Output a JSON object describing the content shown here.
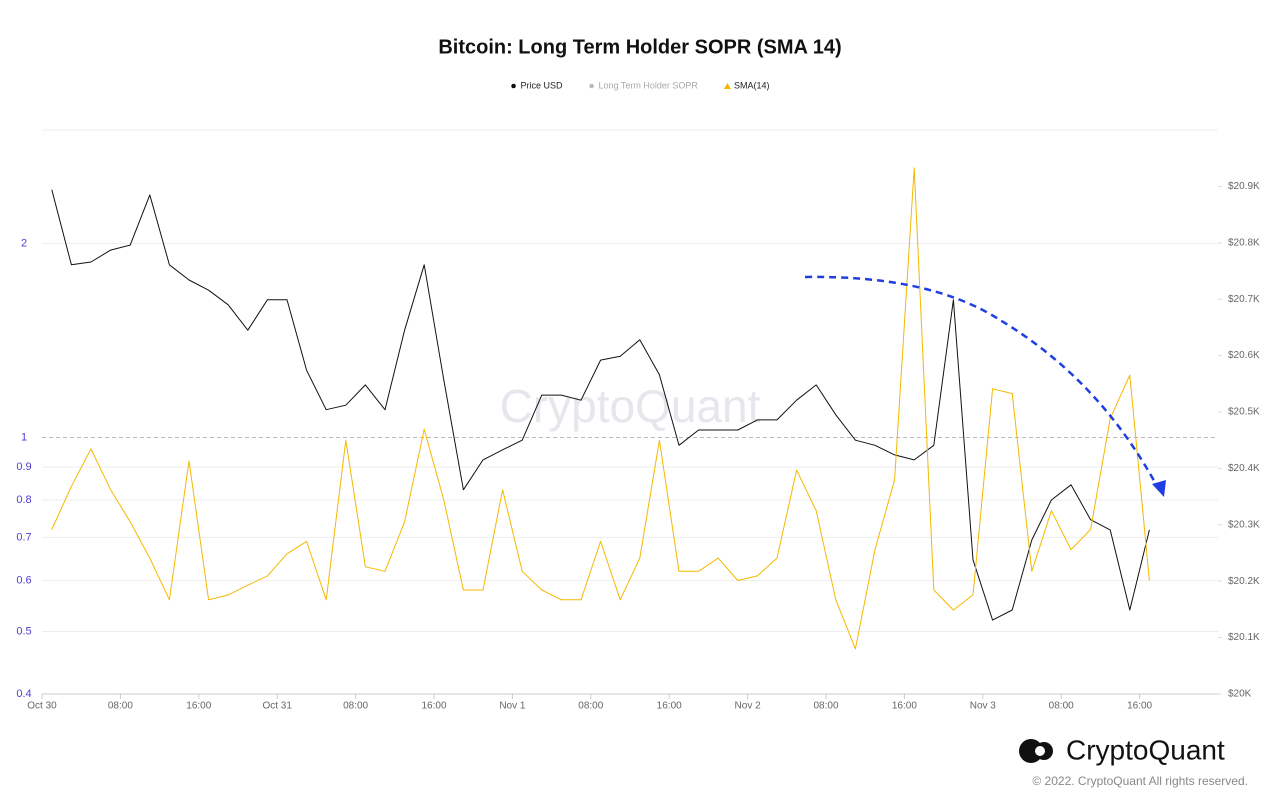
{
  "chart_data": {
    "type": "line",
    "title": "Bitcoin: Long Term Holder SOPR (SMA 14)",
    "watermark": "CryptoQuant",
    "brand": "CryptoQuant",
    "copyright": "© 2022. CryptoQuant All rights reserved.",
    "x": [
      1,
      3,
      5,
      7,
      9,
      11,
      13,
      15,
      17,
      19,
      21,
      23,
      25,
      27,
      29,
      31,
      33,
      35,
      37,
      39,
      41,
      43,
      45,
      47,
      49,
      51,
      53,
      55,
      57,
      59,
      61,
      63,
      65,
      67,
      69,
      71,
      73,
      75,
      77,
      79,
      81,
      83,
      85,
      87,
      89,
      91,
      93,
      95,
      97,
      99,
      101,
      103,
      105,
      107,
      109,
      111,
      113
    ],
    "xlim": [
      0,
      120
    ],
    "xticks": [
      {
        "value": 0,
        "label": "Oct 30"
      },
      {
        "value": 8,
        "label": "08:00"
      },
      {
        "value": 16,
        "label": "16:00"
      },
      {
        "value": 24,
        "label": "Oct 31"
      },
      {
        "value": 32,
        "label": "08:00"
      },
      {
        "value": 40,
        "label": "16:00"
      },
      {
        "value": 48,
        "label": "Nov 1"
      },
      {
        "value": 56,
        "label": "08:00"
      },
      {
        "value": 64,
        "label": "16:00"
      },
      {
        "value": 72,
        "label": "Nov 2"
      },
      {
        "value": 80,
        "label": "08:00"
      },
      {
        "value": 88,
        "label": "16:00"
      },
      {
        "value": 96,
        "label": "Nov 3"
      },
      {
        "value": 104,
        "label": "08:00"
      },
      {
        "value": 112,
        "label": "16:00"
      }
    ],
    "ylim": [
      0.4,
      3.0
    ],
    "yscale": "log",
    "yticks": [
      0.4,
      0.5,
      0.6,
      0.7,
      0.8,
      0.9,
      1,
      2
    ],
    "reference_line": 1,
    "y2lim": [
      20000,
      21000
    ],
    "y2ticks": [
      {
        "value": 20000,
        "label": "$20K"
      },
      {
        "value": 20100,
        "label": "$20.1K"
      },
      {
        "value": 20200,
        "label": "$20.2K"
      },
      {
        "value": 20300,
        "label": "$20.3K"
      },
      {
        "value": 20400,
        "label": "$20.4K"
      },
      {
        "value": 20500,
        "label": "$20.5K"
      },
      {
        "value": 20600,
        "label": "$20.6K"
      },
      {
        "value": 20700,
        "label": "$20.7K"
      },
      {
        "value": 20800,
        "label": "$20.8K"
      },
      {
        "value": 20900,
        "label": "$20.9K"
      }
    ],
    "grid": true,
    "legend": "top",
    "series": [
      {
        "name": "Price USD",
        "color": "#111111",
        "axis": "y2",
        "marker": "circle",
        "values": [
          20894,
          20761,
          20766,
          20787,
          20796,
          20885,
          20761,
          20734,
          20716,
          20690,
          20645,
          20699,
          20699,
          20574,
          20504,
          20512,
          20548,
          20504,
          20645,
          20761,
          20557,
          20362,
          20415,
          20433,
          20450,
          20530,
          20530,
          20521,
          20592,
          20599,
          20628,
          20566,
          20441,
          20468,
          20468,
          20468,
          20486,
          20486,
          20521,
          20548,
          20495,
          20450,
          20441,
          20424,
          20415,
          20441,
          20699,
          20238,
          20131,
          20149,
          20273,
          20344,
          20371,
          20309,
          20291,
          20149,
          20291
        ]
      },
      {
        "name": "Long Term Holder SOPR",
        "color": "#bbbbbb",
        "marker": "circle",
        "visible": false
      },
      {
        "name": "SMA(14)",
        "color": "#f5b800",
        "axis": "y",
        "marker": "triangle",
        "values": [
          0.72,
          0.84,
          0.96,
          0.83,
          0.74,
          0.65,
          0.56,
          0.92,
          0.56,
          0.57,
          0.59,
          0.61,
          0.66,
          0.69,
          0.56,
          0.99,
          0.63,
          0.62,
          0.74,
          1.03,
          0.8,
          0.58,
          0.58,
          0.83,
          0.62,
          0.58,
          0.56,
          0.56,
          0.69,
          0.56,
          0.65,
          0.99,
          0.62,
          0.62,
          0.65,
          0.6,
          0.61,
          0.65,
          0.89,
          0.77,
          0.56,
          0.47,
          0.67,
          0.86,
          2.62,
          0.58,
          0.54,
          0.57,
          1.19,
          1.17,
          0.62,
          0.77,
          0.67,
          0.72,
          1.07,
          1.25,
          0.6
        ]
      }
    ]
  }
}
